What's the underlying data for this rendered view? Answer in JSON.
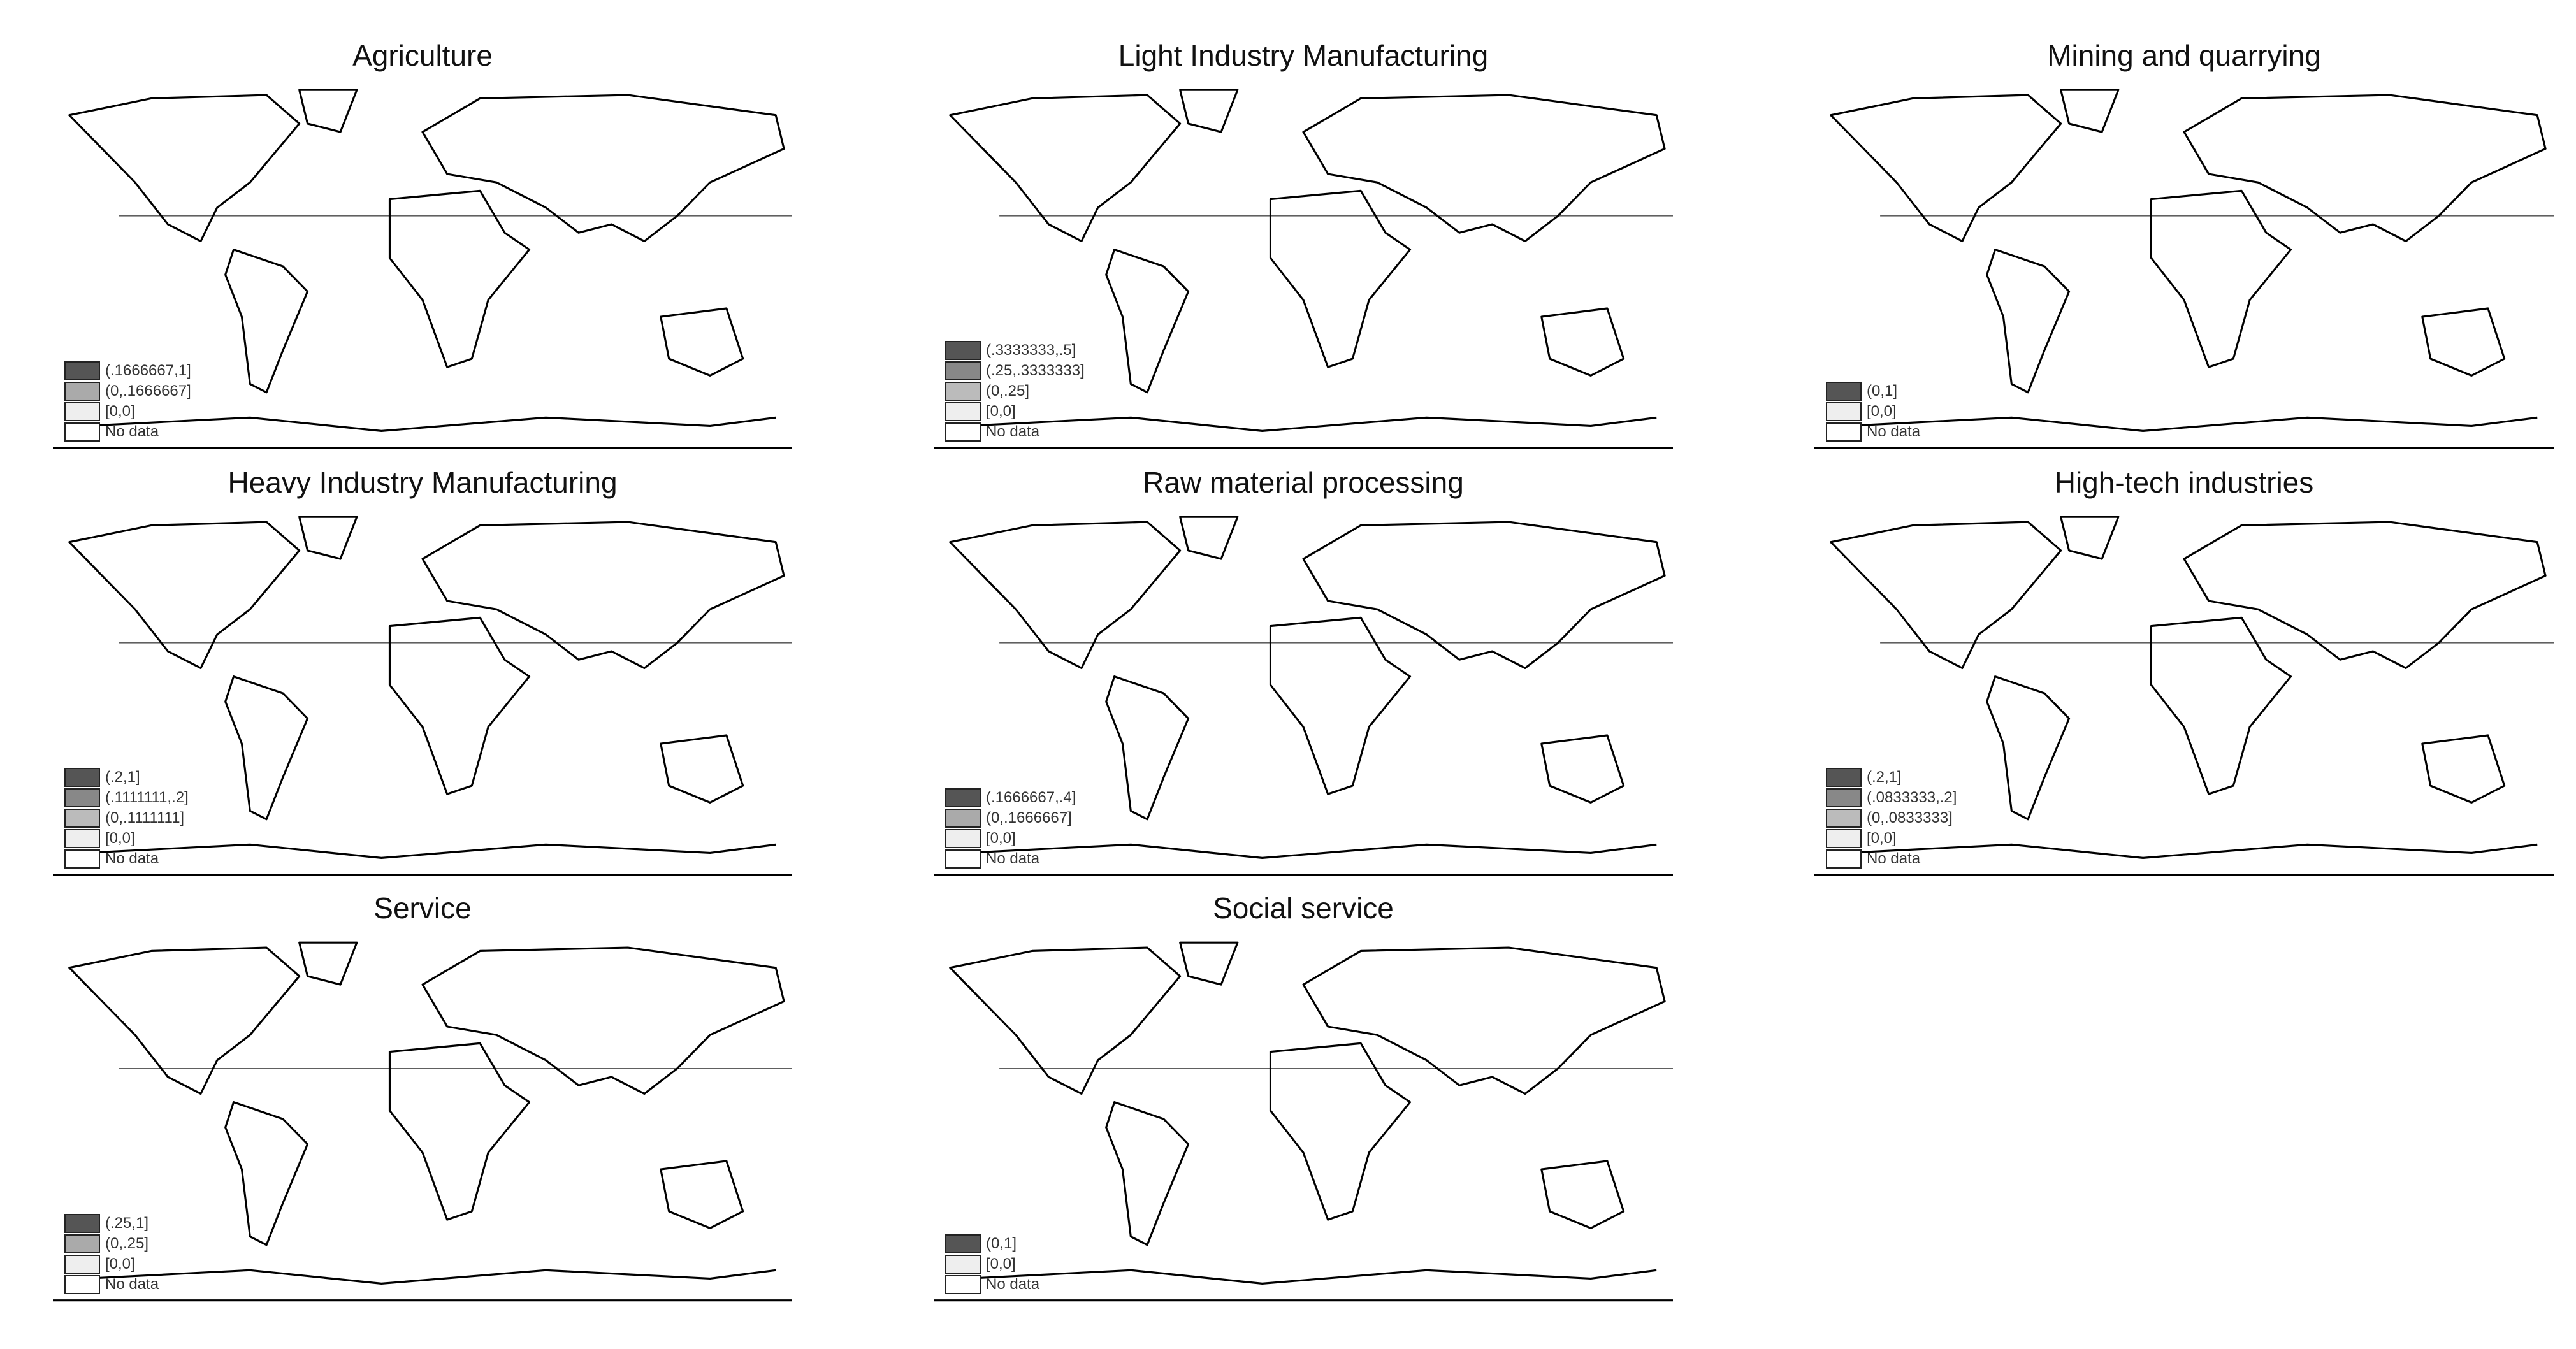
{
  "panels": [
    {
      "title": "Agriculture",
      "legend": [
        {
          "label": "(.1666667,1]",
          "color": "#555555"
        },
        {
          "label": "(0,.1666667]",
          "color": "#aaaaaa"
        },
        {
          "label": "[0,0]",
          "color": "#eeeeee"
        },
        {
          "label": "No data",
          "color": "#ffffff"
        }
      ]
    },
    {
      "title": "Light Industry Manufacturing",
      "legend": [
        {
          "label": "(.3333333,.5]",
          "color": "#555555"
        },
        {
          "label": "(.25,.3333333]",
          "color": "#888888"
        },
        {
          "label": "(0,.25]",
          "color": "#bbbbbb"
        },
        {
          "label": "[0,0]",
          "color": "#eeeeee"
        },
        {
          "label": "No data",
          "color": "#ffffff"
        }
      ]
    },
    {
      "title": "Mining and quarrying",
      "legend": [
        {
          "label": "(0,1]",
          "color": "#555555"
        },
        {
          "label": "[0,0]",
          "color": "#eeeeee"
        },
        {
          "label": "No data",
          "color": "#ffffff"
        }
      ]
    },
    {
      "title": "Heavy Industry Manufacturing",
      "legend": [
        {
          "label": "(.2,1]",
          "color": "#555555"
        },
        {
          "label": "(.1111111,.2]",
          "color": "#888888"
        },
        {
          "label": "(0,.1111111]",
          "color": "#bbbbbb"
        },
        {
          "label": "[0,0]",
          "color": "#eeeeee"
        },
        {
          "label": "No data",
          "color": "#ffffff"
        }
      ]
    },
    {
      "title": "Raw material processing",
      "legend": [
        {
          "label": "(.1666667,.4]",
          "color": "#555555"
        },
        {
          "label": "(0,.1666667]",
          "color": "#aaaaaa"
        },
        {
          "label": "[0,0]",
          "color": "#eeeeee"
        },
        {
          "label": "No data",
          "color": "#ffffff"
        }
      ]
    },
    {
      "title": "High-tech industries",
      "legend": [
        {
          "label": "(.2,1]",
          "color": "#555555"
        },
        {
          "label": "(.0833333,.2]",
          "color": "#888888"
        },
        {
          "label": "(0,.0833333]",
          "color": "#bbbbbb"
        },
        {
          "label": "[0,0]",
          "color": "#eeeeee"
        },
        {
          "label": "No data",
          "color": "#ffffff"
        }
      ]
    },
    {
      "title": "Service",
      "legend": [
        {
          "label": "(.25,1]",
          "color": "#555555"
        },
        {
          "label": "(0,.25]",
          "color": "#aaaaaa"
        },
        {
          "label": "[0,0]",
          "color": "#eeeeee"
        },
        {
          "label": "No data",
          "color": "#ffffff"
        }
      ]
    },
    {
      "title": "Social service",
      "legend": [
        {
          "label": "(0,1]",
          "color": "#555555"
        },
        {
          "label": "[0,0]",
          "color": "#eeeeee"
        },
        {
          "label": "No data",
          "color": "#ffffff"
        }
      ]
    }
  ]
}
